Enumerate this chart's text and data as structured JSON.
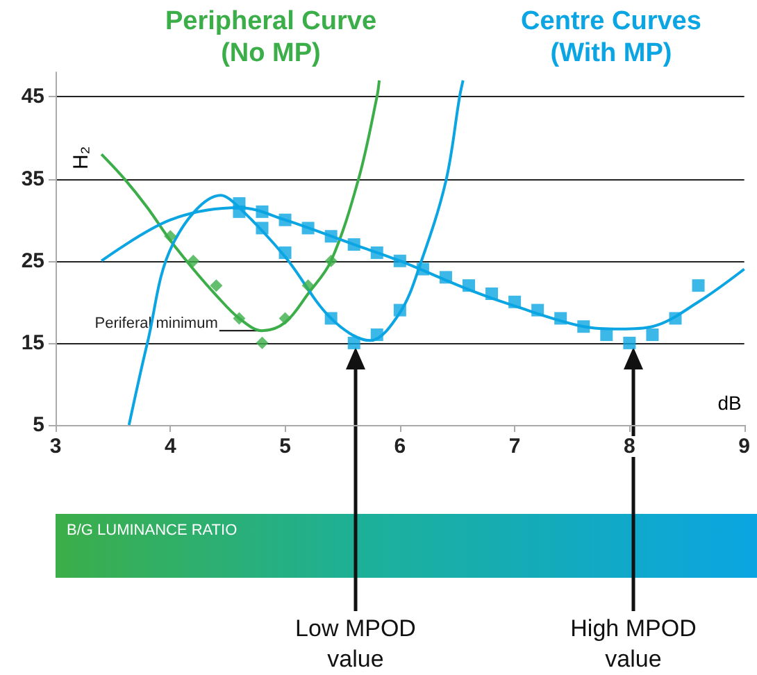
{
  "chart_data": {
    "type": "scatter",
    "xlabel": "dB",
    "ylabel": "H₂",
    "xlim": [
      3,
      9
    ],
    "xticks": [
      3,
      4,
      5,
      6,
      7,
      8,
      9
    ],
    "ylim": [
      5,
      48
    ],
    "yticks": [
      5,
      15,
      25,
      35,
      45
    ],
    "grid": "y",
    "series": [
      {
        "name": "Peripheral Curve\n(No MP)",
        "marker": "diamond",
        "color": "#3cae49",
        "x": [
          4.0,
          4.2,
          4.4,
          4.6,
          4.8,
          5.0,
          5.2,
          5.4
        ],
        "values": [
          28,
          25,
          22,
          18,
          15,
          18,
          22,
          25
        ]
      },
      {
        "type": "line",
        "marker": "none",
        "color": "#3cae49",
        "x": [
          3.4,
          3.6,
          3.8,
          4.0,
          4.2,
          4.4,
          4.6,
          4.8,
          5.0,
          5.2,
          5.4,
          5.64,
          5.8,
          5.82
        ],
        "values": [
          38,
          35,
          31.5,
          27.5,
          24,
          20.8,
          18,
          16.5,
          17.5,
          21,
          25,
          35,
          45,
          47
        ]
      },
      {
        "name": "Centre Curves\n(With MP)",
        "marker": "square",
        "color": "#0aa5e2",
        "x": [
          4.6,
          4.8,
          5.0,
          5.4,
          5.6,
          5.8,
          6.0
        ],
        "values": [
          31,
          29,
          26,
          18,
          15,
          16,
          19
        ]
      },
      {
        "marker": "square",
        "color": "#0aa5e2",
        "x": [
          4.6,
          4.8,
          5.0,
          5.2,
          5.4,
          5.6,
          5.8,
          6.0,
          6.2,
          6.4,
          6.6,
          6.8,
          7.0,
          7.2,
          7.4,
          7.6,
          7.8,
          8.0,
          8.2,
          8.4,
          8.6
        ],
        "values": [
          32,
          31,
          30,
          29,
          28,
          27,
          26,
          25,
          24,
          23,
          22,
          21,
          20,
          19,
          18,
          17,
          16,
          15,
          16,
          18,
          22
        ]
      },
      {
        "type": "line",
        "marker": "none",
        "color": "#0aa5e2",
        "x": [
          3.64,
          3.8,
          4.02,
          4.44,
          4.6,
          5.0,
          5.4,
          5.74,
          6.0,
          6.18,
          6.4,
          6.52,
          6.55
        ],
        "values": [
          5,
          15,
          27,
          33,
          31.5,
          25.5,
          18,
          15.3,
          18.7,
          24.7,
          34.7,
          45,
          47
        ]
      },
      {
        "type": "line",
        "marker": "none",
        "color": "#0aa5e2",
        "x": [
          3.4,
          4.0,
          4.6,
          5.0,
          5.6,
          6.0,
          6.6,
          7.0,
          7.6,
          7.92,
          8.2,
          8.6,
          9.0
        ],
        "values": [
          25,
          30,
          31.5,
          30,
          27,
          25,
          21.5,
          19.5,
          17,
          16.7,
          17,
          20,
          24
        ]
      }
    ],
    "annotations": [
      {
        "text": "Periferal minimum",
        "x": 4.85,
        "y": 16.5
      },
      "B/G LUMINANCE RATIO",
      "Low MPOD\nvalue",
      "High MPOD\nvalue"
    ]
  }
}
